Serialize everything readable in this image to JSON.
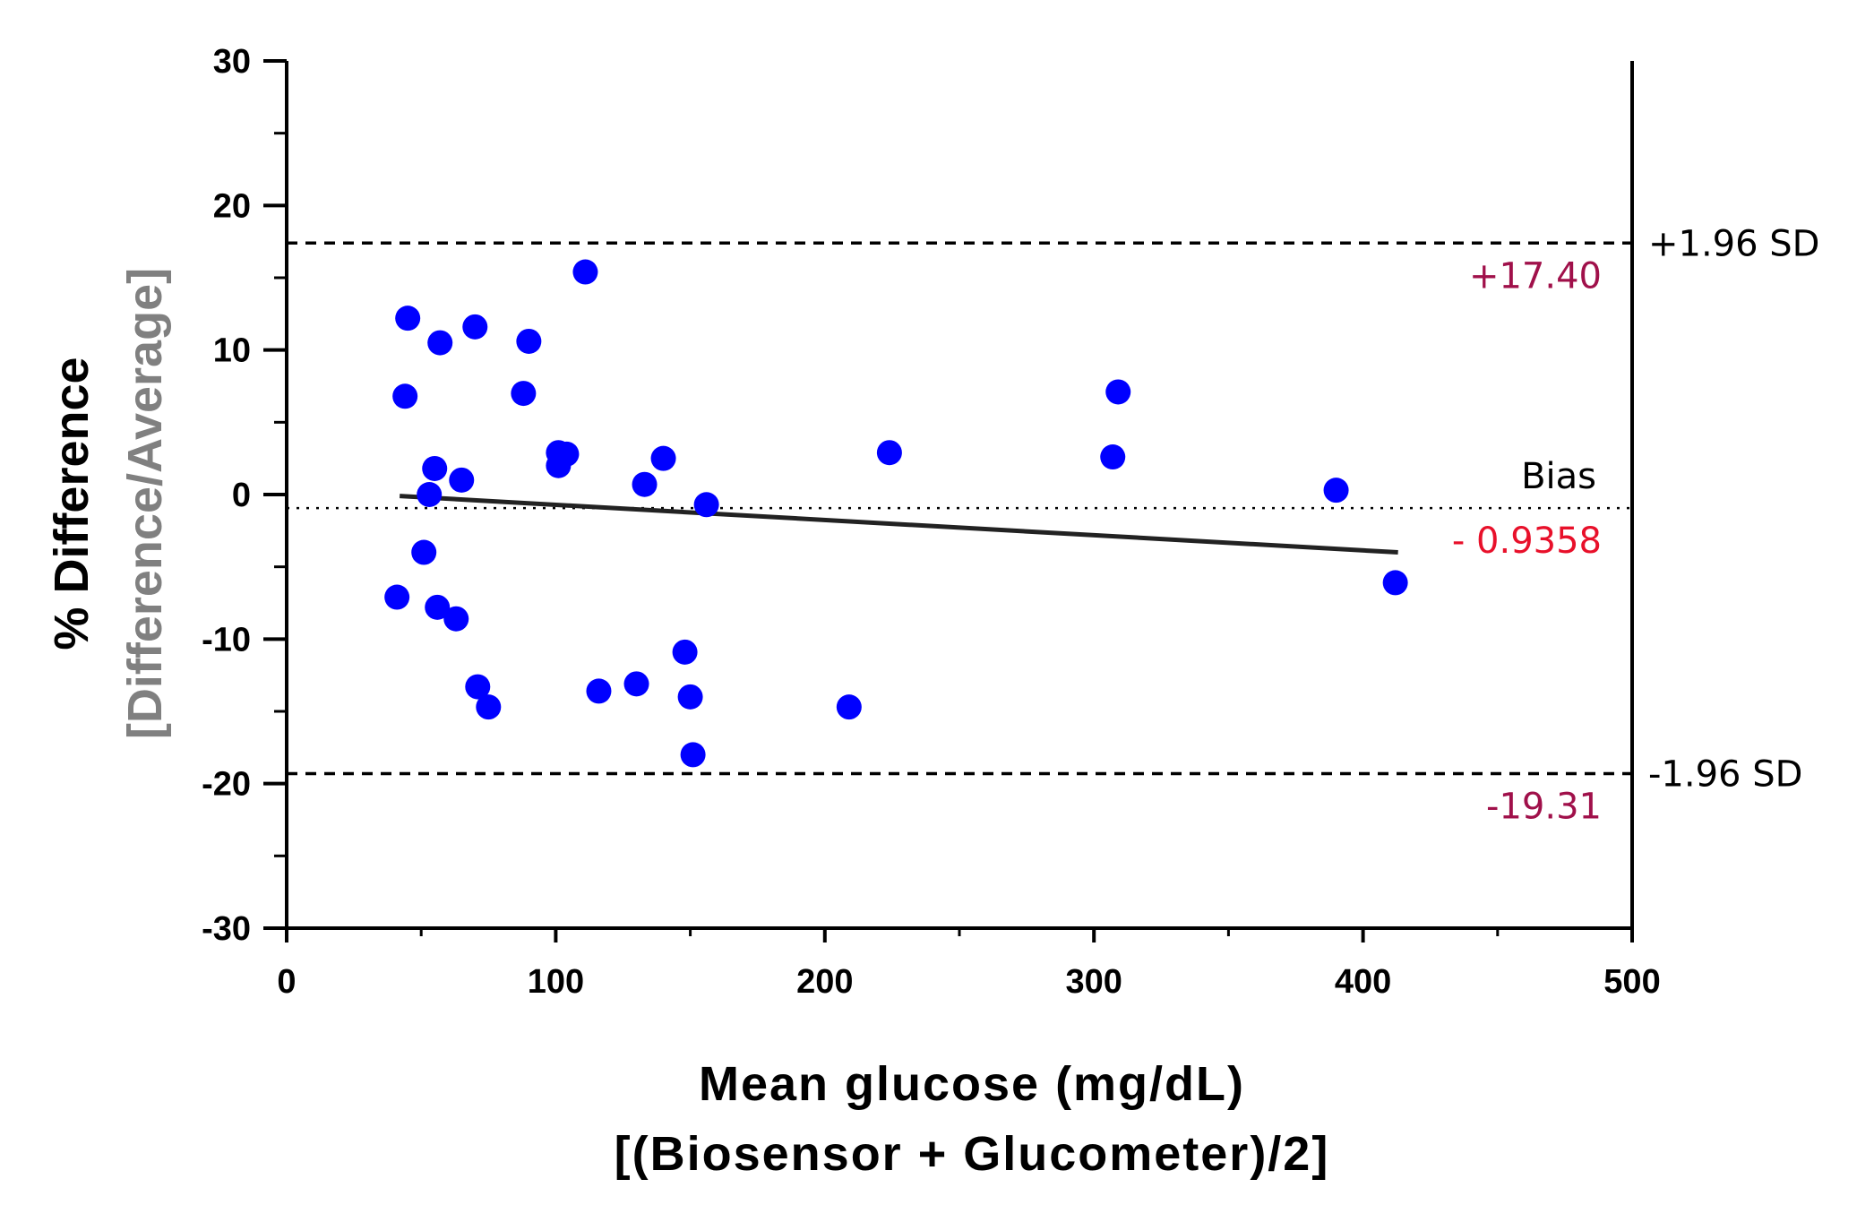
{
  "chart_data": {
    "type": "scatter",
    "title": "",
    "xlabel": "Mean glucose (mg/dL)",
    "xlabel2": "[(Biosensor + Glucometer)/2]",
    "ylabel": "% Difference",
    "ylabel2": "[Difference/Average]",
    "xlim": [
      0,
      500
    ],
    "ylim": [
      -30,
      30
    ],
    "x_ticks": [
      "0",
      "100",
      "200",
      "300",
      "400",
      "500"
    ],
    "y_ticks": [
      "30",
      "20",
      "10",
      "0",
      "-10",
      "-20",
      "-30"
    ],
    "series": [
      {
        "name": "measurements",
        "color": "#0000ff",
        "points": [
          [
            45,
            12.2
          ],
          [
            44,
            6.8
          ],
          [
            57,
            10.5
          ],
          [
            70,
            11.6
          ],
          [
            90,
            10.6
          ],
          [
            88,
            7.0
          ],
          [
            111,
            15.4
          ],
          [
            55,
            1.8
          ],
          [
            65,
            1.0
          ],
          [
            53,
            0.0
          ],
          [
            101,
            2.9
          ],
          [
            101,
            2.0
          ],
          [
            104,
            2.8
          ],
          [
            133,
            0.7
          ],
          [
            140,
            2.5
          ],
          [
            156,
            -0.7
          ],
          [
            51,
            -4.0
          ],
          [
            41,
            -7.1
          ],
          [
            56,
            -7.8
          ],
          [
            63,
            -8.6
          ],
          [
            71,
            -13.3
          ],
          [
            75,
            -14.7
          ],
          [
            116,
            -13.6
          ],
          [
            130,
            -13.1
          ],
          [
            148,
            -10.9
          ],
          [
            150,
            -14.0
          ],
          [
            151,
            -18.0
          ],
          [
            209,
            -14.7
          ],
          [
            224,
            2.9
          ],
          [
            307,
            2.6
          ],
          [
            309,
            7.1
          ],
          [
            390,
            0.3
          ],
          [
            412,
            -6.1
          ]
        ]
      }
    ],
    "regression_line": {
      "from": [
        42,
        -0.1
      ],
      "to": [
        413,
        -4.0
      ],
      "color": "#222222"
    },
    "reference_lines": [
      {
        "name": "upper-limit",
        "y": 17.4,
        "style": "dashed",
        "label": "+1.96 SD",
        "value_label": "+17.40",
        "value_color": "#a0104a"
      },
      {
        "name": "bias",
        "y": -0.9358,
        "style": "dotted",
        "label": "Bias",
        "value_label": "- 0.9358",
        "value_color": "#e8102a"
      },
      {
        "name": "lower-limit",
        "y": -19.31,
        "style": "dashed",
        "label": "-1.96 SD",
        "value_label": "-19.31",
        "value_color": "#a0104a"
      }
    ],
    "ylabel_color": "#000000",
    "ylabel2_color": "#808080"
  }
}
